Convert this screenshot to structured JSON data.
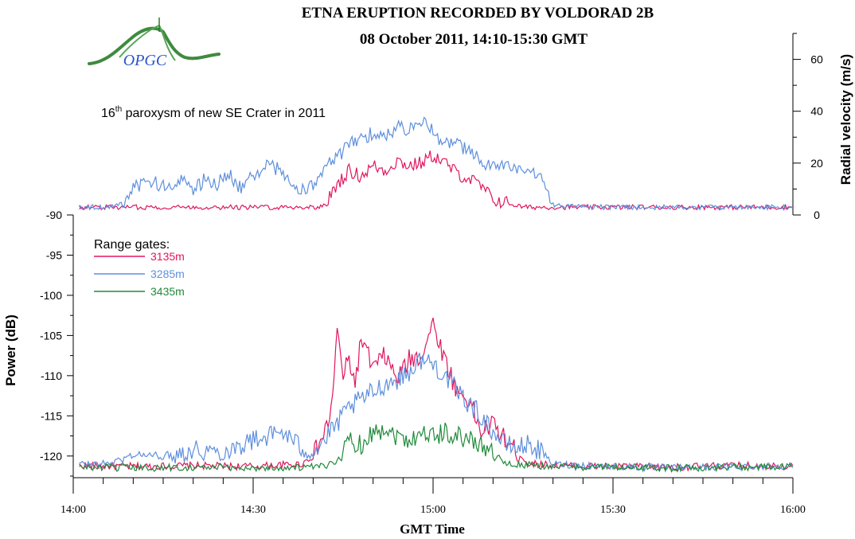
{
  "header": {
    "title_line1": "ETNA ERUPTION RECORDED BY VOLDORAD 2B",
    "title_line2": "08 October 2011, 14:10-15:30 GMT"
  },
  "logo": {
    "text": "OPGC",
    "color": "#2a7d2a",
    "text_color": "#2a55c8"
  },
  "annotation": {
    "prefix": "16",
    "superscript": "th",
    "suffix": " paroxysm of new SE Crater in 2011"
  },
  "legend": {
    "title": "Range gates:",
    "placement": "upper-left",
    "entries": [
      {
        "label": "3135m",
        "color": "#e0175f"
      },
      {
        "label": "3285m",
        "color": "#5e8fdc"
      },
      {
        "label": "3435m",
        "color": "#1f8a3a"
      }
    ]
  },
  "chart_data": [
    {
      "type": "line",
      "panel": "top",
      "ylabel": "Radial velocity (m/s)",
      "y_axis_side": "right",
      "ylim": [
        0,
        70
      ],
      "yticks": [
        0,
        20,
        40,
        60
      ],
      "xlim": [
        "14:00",
        "16:00"
      ],
      "grid": false,
      "series": [
        {
          "name": "3135m",
          "color": "#e0175f",
          "x": [
            "14:01",
            "14:10",
            "14:20",
            "14:30",
            "14:40",
            "14:42",
            "14:44",
            "14:46",
            "14:48",
            "14:50",
            "14:52",
            "14:54",
            "14:56",
            "14:58",
            "15:00",
            "15:02",
            "15:04",
            "15:06",
            "15:08",
            "15:10",
            "15:15",
            "15:20",
            "15:30",
            "15:45",
            "16:00"
          ],
          "y": [
            3,
            3,
            3,
            3,
            3,
            3.5,
            12,
            17,
            15,
            19,
            17,
            21,
            19,
            20,
            23,
            20,
            16,
            14,
            11,
            6,
            3,
            3,
            3,
            3,
            3
          ]
        },
        {
          "name": "3285m",
          "color": "#5e8fdc",
          "x": [
            "14:01",
            "14:05",
            "14:08",
            "14:10",
            "14:12",
            "14:14",
            "14:16",
            "14:18",
            "14:20",
            "14:22",
            "14:24",
            "14:26",
            "14:28",
            "14:30",
            "14:32",
            "14:34",
            "14:36",
            "14:38",
            "14:40",
            "14:42",
            "14:44",
            "14:46",
            "14:48",
            "14:50",
            "14:52",
            "14:54",
            "14:56",
            "14:58",
            "15:00",
            "15:02",
            "15:04",
            "15:06",
            "15:08",
            "15:10",
            "15:12",
            "15:14",
            "15:16",
            "15:18",
            "15:20",
            "15:25",
            "15:30",
            "15:40",
            "15:50",
            "16:00"
          ],
          "y": [
            3,
            3,
            4,
            10,
            13,
            12,
            10,
            15,
            9,
            14,
            12,
            16,
            10,
            15,
            19,
            18,
            13,
            9,
            12,
            18,
            22,
            27,
            29,
            32,
            30,
            34,
            33,
            37,
            32,
            27,
            28,
            24,
            21,
            18,
            20,
            17,
            15,
            16,
            4,
            3,
            3,
            3,
            3,
            3
          ]
        }
      ]
    },
    {
      "type": "line",
      "panel": "bottom",
      "xlabel": "GMT Time",
      "ylabel": "Power (dB)",
      "ylim": [
        -122.5,
        -90
      ],
      "yticks": [
        -120,
        -115,
        -110,
        -105,
        -100,
        -95,
        -90
      ],
      "xlim": [
        "14:00",
        "16:00"
      ],
      "xticks": [
        "14:00",
        "14:30",
        "15:00",
        "15:30",
        "16:00"
      ],
      "grid": false,
      "series": [
        {
          "name": "3135m",
          "color": "#e0175f",
          "x": [
            "14:01",
            "14:10",
            "14:20",
            "14:30",
            "14:38",
            "14:40",
            "14:42",
            "14:43",
            "14:44",
            "14:45",
            "14:46",
            "14:47",
            "14:48",
            "14:50",
            "14:52",
            "14:54",
            "14:56",
            "14:58",
            "15:00",
            "15:02",
            "15:04",
            "15:06",
            "15:08",
            "15:10",
            "15:12",
            "15:14",
            "15:16",
            "15:18",
            "15:20",
            "15:30",
            "15:40",
            "15:50",
            "16:00"
          ],
          "y": [
            -121.2,
            -121.3,
            -121.2,
            -121.3,
            -121.0,
            -120.0,
            -117.0,
            -114.5,
            -104.5,
            -110.0,
            -108.0,
            -111.0,
            -105.5,
            -109.0,
            -107.5,
            -110.5,
            -108.0,
            -107.5,
            -103.5,
            -108.0,
            -112.0,
            -113.0,
            -117.0,
            -116.0,
            -118.0,
            -119.5,
            -121.0,
            -121.0,
            -121.2,
            -121.3,
            -121.4,
            -121.2,
            -121.2
          ]
        },
        {
          "name": "3285m",
          "color": "#5e8fdc",
          "x": [
            "14:01",
            "14:05",
            "14:08",
            "14:10",
            "14:15",
            "14:20",
            "14:25",
            "14:30",
            "14:35",
            "14:38",
            "14:40",
            "14:42",
            "14:44",
            "14:46",
            "14:48",
            "14:50",
            "14:52",
            "14:54",
            "14:56",
            "14:58",
            "15:00",
            "15:02",
            "15:04",
            "15:06",
            "15:08",
            "15:10",
            "15:12",
            "15:14",
            "15:16",
            "15:18",
            "15:20",
            "15:30",
            "15:40",
            "15:50",
            "16:00"
          ],
          "y": [
            -121.0,
            -121.0,
            -120.5,
            -119.8,
            -120.0,
            -119.2,
            -119.5,
            -118.0,
            -117.0,
            -119.0,
            -119.5,
            -118.0,
            -116.0,
            -114.0,
            -113.0,
            -112.0,
            -111.0,
            -110.5,
            -109.5,
            -108.0,
            -108.5,
            -110.0,
            -112.0,
            -113.5,
            -115.0,
            -117.0,
            -118.5,
            -119.0,
            -118.5,
            -119.5,
            -121.0,
            -121.3,
            -121.5,
            -121.3,
            -121.2
          ]
        },
        {
          "name": "3435m",
          "color": "#1f8a3a",
          "x": [
            "14:01",
            "14:10",
            "14:20",
            "14:30",
            "14:40",
            "14:42",
            "14:44",
            "14:45",
            "14:46",
            "14:48",
            "14:50",
            "14:52",
            "14:54",
            "14:56",
            "14:58",
            "15:00",
            "15:02",
            "15:04",
            "15:06",
            "15:08",
            "15:10",
            "15:12",
            "15:20",
            "15:30",
            "15:40",
            "15:50",
            "16:00"
          ],
          "y": [
            -121.4,
            -121.5,
            -121.4,
            -121.5,
            -121.4,
            -121.3,
            -120.5,
            -119.5,
            -118.0,
            -118.5,
            -117.0,
            -116.5,
            -117.5,
            -118.0,
            -117.0,
            -117.5,
            -117.0,
            -117.5,
            -118.0,
            -118.5,
            -119.5,
            -121.0,
            -121.3,
            -121.4,
            -121.5,
            -121.4,
            -121.4
          ]
        }
      ]
    }
  ]
}
